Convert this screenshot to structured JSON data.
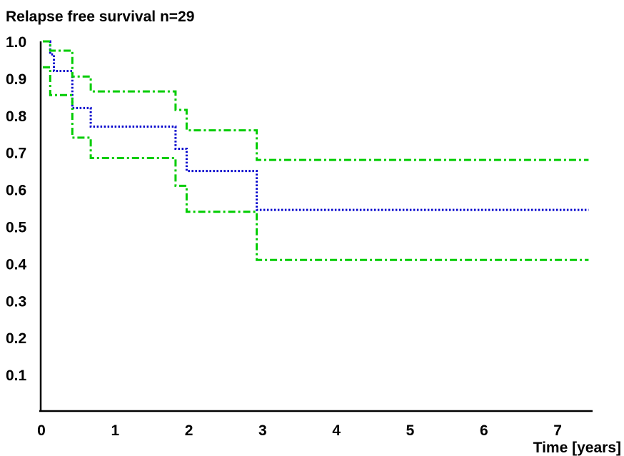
{
  "chart_data": {
    "type": "line",
    "title": "Relapse free survival n=29",
    "xlabel": "Time [years]",
    "ylabel": "",
    "xlim": [
      0,
      7.4
    ],
    "ylim": [
      0,
      1.0
    ],
    "x_ticks": [
      0,
      1,
      2,
      3,
      4,
      5,
      6,
      7
    ],
    "x_tick_labels": [
      "0",
      "1",
      "2",
      "3",
      "4",
      "5",
      "6",
      "7"
    ],
    "y_ticks": [
      1.0,
      0.9,
      0.8,
      0.7,
      0.6,
      0.5,
      0.4,
      0.3,
      0.2,
      0.1
    ],
    "y_tick_labels": [
      "1.0",
      "0.9",
      "0.8",
      "0.7",
      "0.6",
      "0.5",
      "0.4",
      "0.3",
      "0.2",
      "0.1"
    ],
    "grid": false,
    "step": true,
    "series": [
      {
        "color": "#0000cc",
        "style": "dotted",
        "x": [
          0,
          0.1,
          0.15,
          0.4,
          0.65,
          1.8,
          1.95,
          2.9,
          7.4
        ],
        "y": [
          1.0,
          0.965,
          0.92,
          0.82,
          0.77,
          0.71,
          0.65,
          0.545,
          0.545
        ]
      },
      {
        "color": "#00cc00",
        "style": "dashdot",
        "x": [
          0,
          0.1,
          0.4,
          0.65,
          1.8,
          1.95,
          2.9,
          7.4
        ],
        "y": [
          1.0,
          0.975,
          0.905,
          0.865,
          0.815,
          0.76,
          0.68,
          0.68
        ]
      },
      {
        "color": "#00cc00",
        "style": "dashdot",
        "x": [
          0,
          0.1,
          0.4,
          0.65,
          1.8,
          1.95,
          2.9,
          7.4
        ],
        "y": [
          0.93,
          0.855,
          0.74,
          0.685,
          0.61,
          0.54,
          0.41,
          0.41
        ]
      }
    ]
  }
}
